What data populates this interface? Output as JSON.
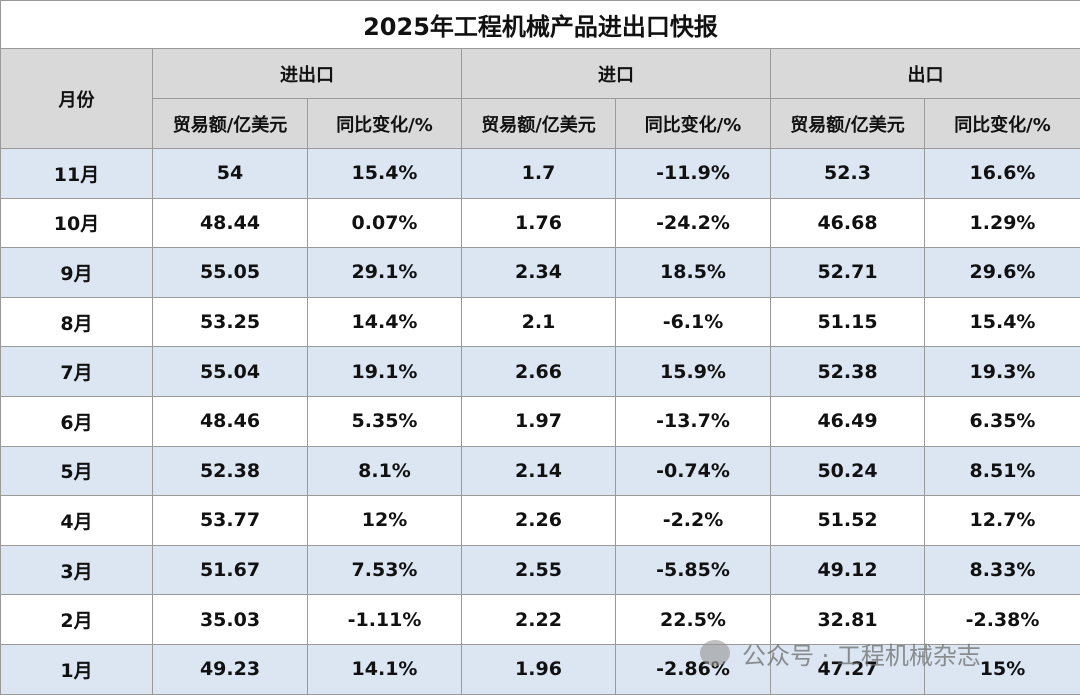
{
  "title": "2025年工程机械产品进出口快报",
  "header": {
    "month": "月份",
    "groups": [
      "进出口",
      "进口",
      "出口"
    ],
    "sub": [
      "贸易额/亿美元",
      "同比变化/%",
      "贸易额/亿美元",
      "同比变化/%",
      "贸易额/亿美元",
      "同比变化/%"
    ]
  },
  "rows": [
    [
      "11月",
      "54",
      "15.4%",
      "1.7",
      "-11.9%",
      "52.3",
      "16.6%"
    ],
    [
      "10月",
      "48.44",
      "0.07%",
      "1.76",
      "-24.2%",
      "46.68",
      "1.29%"
    ],
    [
      "9月",
      "55.05",
      "29.1%",
      "2.34",
      "18.5%",
      "52.71",
      "29.6%"
    ],
    [
      "8月",
      "53.25",
      "14.4%",
      "2.1",
      "-6.1%",
      "51.15",
      "15.4%"
    ],
    [
      "7月",
      "55.04",
      "19.1%",
      "2.66",
      "15.9%",
      "52.38",
      "19.3%"
    ],
    [
      "6月",
      "48.46",
      "5.35%",
      "1.97",
      "-13.7%",
      "46.49",
      "6.35%"
    ],
    [
      "5月",
      "52.38",
      "8.1%",
      "2.14",
      "-0.74%",
      "50.24",
      "8.51%"
    ],
    [
      "4月",
      "53.77",
      "12%",
      "2.26",
      "-2.2%",
      "51.52",
      "12.7%"
    ],
    [
      "3月",
      "51.67",
      "7.53%",
      "2.55",
      "-5.85%",
      "49.12",
      "8.33%"
    ],
    [
      "2月",
      "35.03",
      "-1.11%",
      "2.22",
      "22.5%",
      "32.81",
      "-2.38%"
    ],
    [
      "1月",
      "49.23",
      "14.1%",
      "1.96",
      "-2.86%",
      "47.27",
      "15%"
    ]
  ],
  "watermark": "公众号 · 工程机械杂志"
}
